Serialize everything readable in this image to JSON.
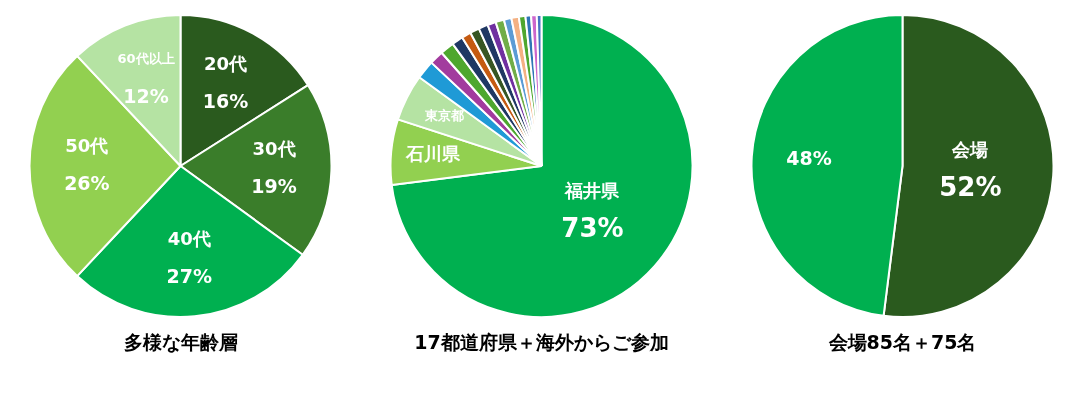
{
  "chart_data": [
    {
      "type": "pie",
      "title": "多様な年齢層",
      "categories": [
        "20代",
        "30代",
        "40代",
        "50代",
        "60代以上"
      ],
      "values": [
        16,
        19,
        27,
        26,
        12
      ],
      "value_labels": [
        "16%",
        "19%",
        "27%",
        "26%",
        "12%"
      ],
      "colors": [
        "#2a5a1e",
        "#3a7d2a",
        "#00b050",
        "#92d050",
        "#b5e3a3"
      ],
      "legend": false
    },
    {
      "type": "pie",
      "title": "17都道府県＋海外からご参加",
      "categories": [
        "福井県",
        "石川県",
        "東京都",
        null,
        null,
        null,
        null,
        null,
        null,
        null,
        null,
        null,
        null,
        null,
        null,
        null,
        null,
        null
      ],
      "values": [
        73,
        7,
        5,
        2,
        1.5,
        1.5,
        1.2,
        1,
        1,
        1,
        0.9,
        0.9,
        0.8,
        0.8,
        0.7,
        0.6,
        0.6,
        0.5
      ],
      "value_labels": [
        "73%",
        null,
        null,
        null,
        null,
        null,
        null,
        null,
        null,
        null,
        null,
        null,
        null,
        null,
        null,
        null,
        null,
        null
      ],
      "colors": [
        "#00b050",
        "#92d050",
        "#b5e3a3",
        "#1f9ad6",
        "#a23b9e",
        "#4ea72e",
        "#1f3864",
        "#c55a11",
        "#375623",
        "#203864",
        "#7030a0",
        "#70ad47",
        "#5b9bd5",
        "#f4b183",
        "#4ea72e",
        "#2e75b6",
        "#cc66cc",
        "#4472c4"
      ],
      "legend": false
    },
    {
      "type": "pie",
      "title": "会場85名＋75名",
      "categories": [
        "会場",
        null
      ],
      "values": [
        52,
        48
      ],
      "value_labels": [
        "52%",
        "48%"
      ],
      "colors": [
        "#2a5a1e",
        "#00b050"
      ],
      "legend": false
    }
  ]
}
